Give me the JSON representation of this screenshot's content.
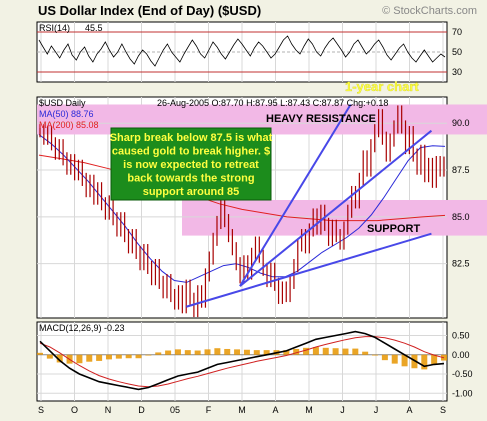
{
  "header": {
    "title": "US Dollar Index (End of Day) ($USD)",
    "brand": "© StockCharts.com"
  },
  "chart_data": [
    {
      "type": "line",
      "panel": "rsi",
      "label_name": "RSI(14)",
      "label_value": "45.5",
      "ylim": [
        20,
        80
      ],
      "ticks": [
        "70",
        "50",
        "30"
      ],
      "tick_values": [
        70,
        50,
        30
      ],
      "values": [
        62,
        55,
        48,
        56,
        50,
        44,
        52,
        58,
        47,
        42,
        50,
        55,
        46,
        40,
        48,
        53,
        60,
        52,
        45,
        50,
        58,
        50,
        43,
        38,
        46,
        52,
        48,
        41,
        36,
        44,
        52,
        58,
        50,
        45,
        40,
        48,
        55,
        62,
        56,
        48,
        44,
        52,
        60,
        55,
        48,
        43,
        50,
        57,
        63,
        58,
        52,
        46,
        54,
        60,
        56,
        50,
        44,
        48,
        55,
        62,
        66,
        58,
        52,
        48,
        56,
        63,
        58,
        50,
        46,
        54,
        60,
        64,
        58,
        52,
        45,
        50,
        58,
        62,
        55,
        48,
        52,
        58,
        62,
        55,
        47,
        42,
        48,
        54,
        58,
        50,
        44,
        40,
        46,
        52,
        46,
        40,
        44,
        48,
        45
      ]
    },
    {
      "type": "line",
      "panel": "price",
      "series_label": "$USD Daily",
      "info": "26-Aug-2005  O:87.70  H:87.95  L:87.43  C:87.87  Chg:+0.18",
      "ylim": [
        79.6,
        91.4
      ],
      "ticks": [
        "90.0",
        "87.5",
        "85.0",
        "82.5"
      ],
      "tick_values": [
        90,
        87.5,
        85,
        82.5
      ],
      "close": [
        89.6,
        89.2,
        89.5,
        88.9,
        88.4,
        88.8,
        88.1,
        87.6,
        88.0,
        87.3,
        87.7,
        87.0,
        86.4,
        86.9,
        86.0,
        86.5,
        85.7,
        85.2,
        85.8,
        84.9,
        84.3,
        84.9,
        84.0,
        83.4,
        84.0,
        83.1,
        82.5,
        83.2,
        82.3,
        81.7,
        82.4,
        81.5,
        81.0,
        81.6,
        80.8,
        80.4,
        81.0,
        80.2,
        81.3,
        80.6,
        80.0,
        81.0,
        80.5,
        81.9,
        82.8,
        83.8,
        84.7,
        85.6,
        84.8,
        84.0,
        83.3,
        82.5,
        81.8,
        82.6,
        82.0,
        83.0,
        83.6,
        82.9,
        82.2,
        81.6,
        82.2,
        81.4,
        80.7,
        81.2,
        80.8,
        81.5,
        82.4,
        83.5,
        84.0,
        83.4,
        84.3,
        85.1,
        84.4,
        85.3,
        84.6,
        83.8,
        84.5,
        84.0,
        83.6,
        84.4,
        85.3,
        86.3,
        85.8,
        87.0,
        88.2,
        87.5,
        88.8,
        89.6,
        90.4,
        89.2,
        88.3,
        89.1,
        89.8,
        90.6,
        89.8,
        88.7,
        89.5,
        88.3,
        87.6,
        88.5,
        87.2,
        87.8,
        86.9,
        87.9,
        87.5,
        87.87
      ],
      "ma50_label": "MA(50) 88.76",
      "ma50": [
        89.4,
        88.9,
        88.3,
        87.6,
        86.9,
        86.1,
        85.3,
        84.5,
        83.6,
        82.8,
        82.1,
        81.6,
        81.5,
        81.8,
        82.1,
        82.4,
        82.5,
        82.3,
        82.0,
        81.8,
        81.8,
        82.1,
        82.6,
        83.1,
        83.5,
        83.9,
        84.4,
        85.1,
        86.0,
        87.0,
        88.0,
        88.7,
        88.8,
        88.76
      ],
      "ma200_label": "MA(200) 85.08",
      "ma200": [
        88.3,
        88.1,
        87.9,
        87.6,
        87.3,
        86.9,
        86.5,
        86.1,
        85.7,
        85.4,
        85.2,
        85.0,
        84.9,
        84.8,
        84.8,
        84.8,
        84.9,
        85.0,
        85.08
      ],
      "annotation": "Sharp break below 87.5 is what caused gold to break higher. $ is now expected to retreat back towards the strong support around 85",
      "one_year_label": "1-year chart",
      "heavy_resistance_label": "HEAVY RESISTANCE",
      "heavy_resistance_zone": [
        89.4,
        91.0
      ],
      "support_label": "SUPPORT",
      "support_zone": [
        84.0,
        85.9
      ],
      "trendlines": [
        {
          "x": [
            0.495,
            0.962
          ],
          "y": [
            81.3,
            89.6
          ]
        },
        {
          "x": [
            0.495,
            0.765
          ],
          "y": [
            81.3,
            91.0
          ]
        },
        {
          "x": [
            0.364,
            0.962
          ],
          "y": [
            80.2,
            84.1
          ]
        }
      ],
      "colors": {
        "price": "#a80000",
        "ma50": "#2a2ad8",
        "ma200": "#e02020",
        "resistance_band": "#f2b8e6",
        "support_band": "#f2b8e6",
        "annotation_bg": "#1c8c1c",
        "annotation_text": "#ffff40",
        "trendline": "#4848e8",
        "one_year": "#ffff40"
      }
    },
    {
      "type": "bar",
      "panel": "macd",
      "label": "MACD(12,26,9) -0.23",
      "ylim": [
        -1.2,
        0.85
      ],
      "ticks": [
        "0.50",
        "0.00",
        "-0.50",
        "-1.00"
      ],
      "tick_values": [
        0.5,
        0.0,
        -0.5,
        -1.0
      ],
      "macd": [
        0.35,
        0.1,
        -0.15,
        -0.35,
        -0.5,
        -0.6,
        -0.7,
        -0.75,
        -0.8,
        -0.85,
        -0.9,
        -0.85,
        -0.75,
        -0.65,
        -0.55,
        -0.5,
        -0.45,
        -0.35,
        -0.25,
        -0.2,
        -0.15,
        -0.1,
        -0.05,
        0.0,
        0.05,
        0.1,
        0.2,
        0.3,
        0.4,
        0.45,
        0.5,
        0.55,
        0.6,
        0.55,
        0.45,
        0.3,
        0.15,
        0.0,
        -0.15,
        -0.3,
        -0.25,
        -0.23
      ],
      "signal": [
        0.3,
        0.2,
        0.05,
        -0.12,
        -0.28,
        -0.42,
        -0.54,
        -0.63,
        -0.7,
        -0.76,
        -0.81,
        -0.83,
        -0.81,
        -0.76,
        -0.69,
        -0.62,
        -0.56,
        -0.49,
        -0.42,
        -0.35,
        -0.29,
        -0.23,
        -0.17,
        -0.12,
        -0.07,
        -0.02,
        0.05,
        0.12,
        0.2,
        0.27,
        0.33,
        0.39,
        0.44,
        0.47,
        0.47,
        0.44,
        0.38,
        0.3,
        0.2,
        0.08,
        -0.01,
        -0.08
      ],
      "colors": {
        "macd": "#000000",
        "signal": "#d02020",
        "histogram": "#e69500"
      }
    }
  ],
  "x_axis": {
    "labels": [
      "S",
      "O",
      "N",
      "D",
      "05",
      "F",
      "M",
      "A",
      "M",
      "J",
      "J",
      "A",
      "S"
    ]
  }
}
